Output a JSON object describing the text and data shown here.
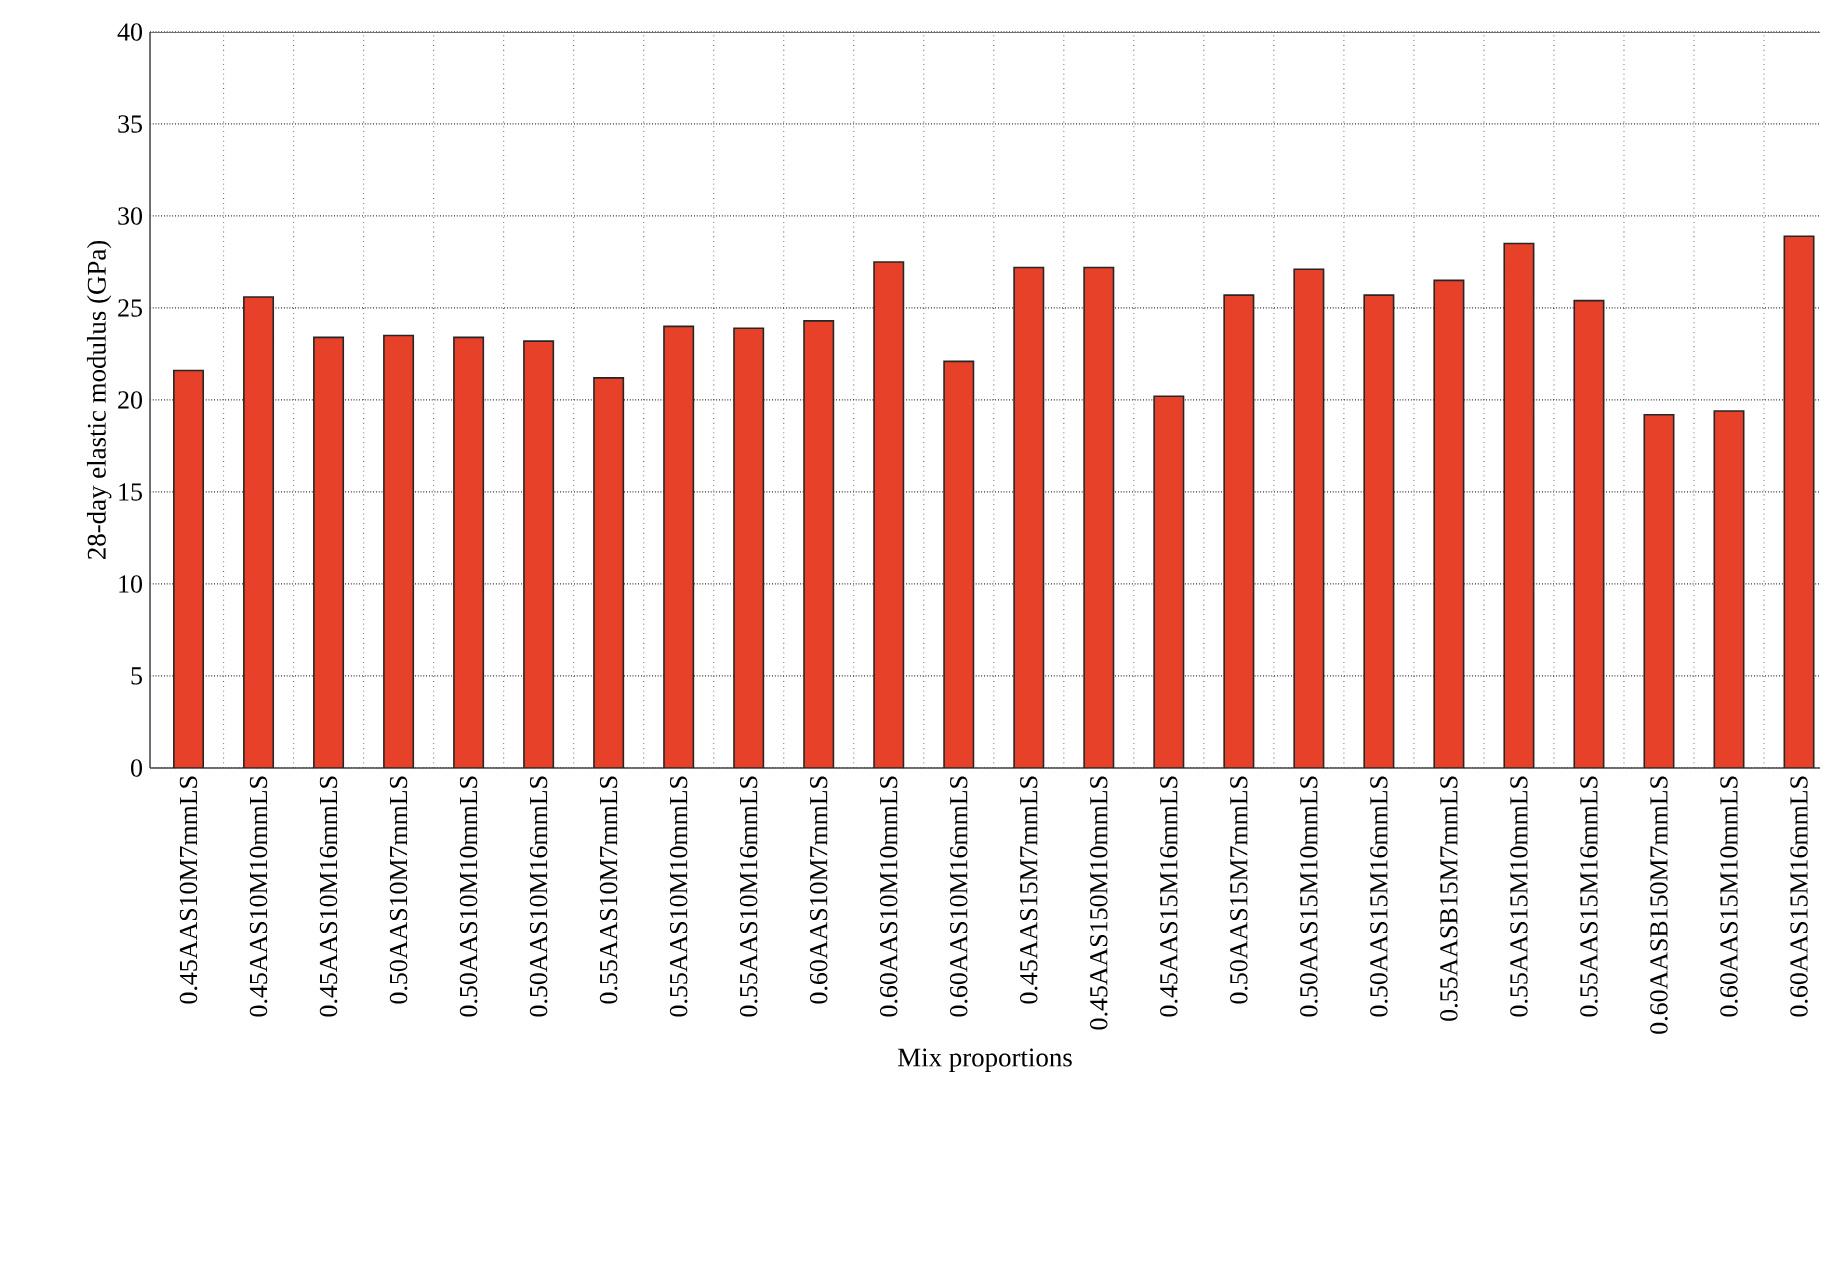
{
  "chart_data": {
    "type": "bar",
    "xlabel": "Mix proportions",
    "ylabel": "28-day elastic modulus (GPa)",
    "categories": [
      "0.45AAS10M7mmLS",
      "0.45AAS10M10mmLS",
      "0.45AAS10M16mmLS",
      "0.50AAS10M7mmLS",
      "0.50AAS10M10mmLS",
      "0.50AAS10M16mmLS",
      "0.55AAS10M7mmLS",
      "0.55AAS10M10mmLS",
      "0.55AAS10M16mmLS",
      "0.60AAS10M7mmLS",
      "0.60AAS10M10mmLS",
      "0.60AAS10M16mmLS",
      "0.45AAS15M7mmLS",
      "0.45AAS150M10mmLS",
      "0.45AAS15M16mmLS",
      "0.50AAS15M7mmLS",
      "0.50AAS15M10mmLS",
      "0.50AAS15M16mmLS",
      "0.55AASB15M7mmLS",
      "0.55AAS15M10mmLS",
      "0.55AAS15M16mmLS",
      "0.60AASB150M7mmLS",
      "0.60AAS15M10mmLS",
      "0.60AAS15M16mmLS"
    ],
    "values": [
      21.6,
      25.6,
      23.4,
      23.5,
      23.4,
      23.2,
      21.2,
      24.0,
      23.9,
      24.3,
      27.5,
      22.1,
      27.2,
      27.2,
      20.2,
      25.7,
      27.1,
      25.7,
      26.5,
      28.5,
      25.4,
      19.2,
      19.4,
      28.9
    ],
    "color": "#e8412a",
    "ylim": [
      0,
      40
    ],
    "yticks": [
      0,
      5,
      10,
      15,
      20,
      25,
      30,
      35,
      40
    ],
    "grid": true
  }
}
